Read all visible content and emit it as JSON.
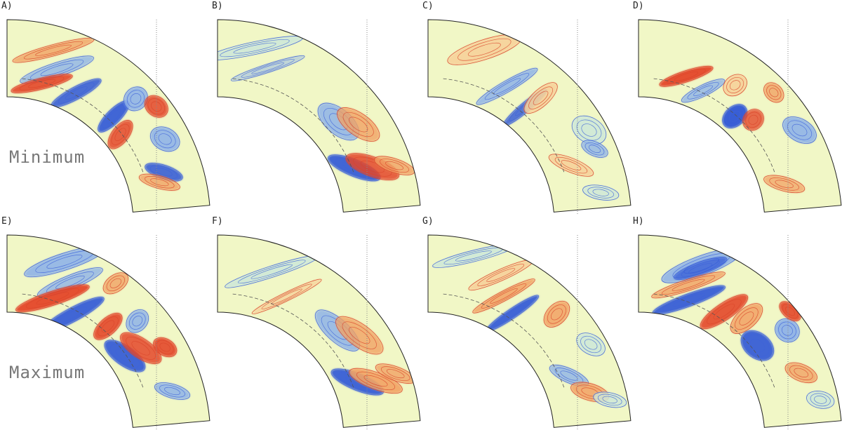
{
  "row_labels": [
    "Minimum",
    "Maximum"
  ],
  "panels": [
    {
      "label": "A)",
      "style": "A"
    },
    {
      "label": "B)",
      "style": "B"
    },
    {
      "label": "C)",
      "style": "C"
    },
    {
      "label": "D)",
      "style": "D"
    },
    {
      "label": "E)",
      "style": "E"
    },
    {
      "label": "F)",
      "style": "F"
    },
    {
      "label": "G)",
      "style": "G"
    },
    {
      "label": "H)",
      "style": "H"
    }
  ],
  "colors": {
    "background_fill": "#f1f7c6",
    "positive_light": "#f7d19a",
    "positive_mid": "#f2a263",
    "positive_strong": "#e4472a",
    "negative_light": "#cfe8d8",
    "negative_mid": "#8fb3e8",
    "negative_strong": "#2f57d6",
    "contour_positive": "#d9452b",
    "contour_negative": "#3f63d9",
    "outline": "#222222",
    "dotted_line": "#888888"
  }
}
